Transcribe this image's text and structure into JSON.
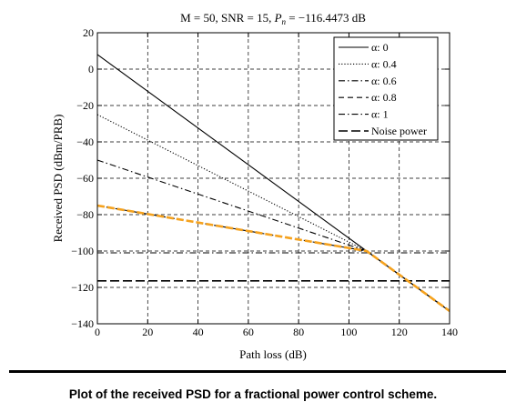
{
  "caption": "Plot of the received PSD for a fractional power control scheme.",
  "chart_data": {
    "type": "line",
    "title_parts": [
      "M = 50, SNR = 15, ",
      "P",
      "n",
      " = −116.4473 dB"
    ],
    "xlabel": "Path loss (dB)",
    "ylabel": "Received PSD (dBm/PRB)",
    "xlim": [
      0,
      140
    ],
    "ylim": [
      -140,
      20
    ],
    "x_ticks": [
      0,
      20,
      40,
      60,
      80,
      100,
      120,
      140
    ],
    "y_ticks": [
      20,
      0,
      -20,
      -40,
      -60,
      -80,
      -100,
      -120,
      -140
    ],
    "x_tick_labels": [
      "0",
      "20",
      "40",
      "60",
      "80",
      "100",
      "120",
      "140"
    ],
    "y_tick_labels": [
      "20",
      "0",
      "−20",
      "−40",
      "−60",
      "−80",
      "−100",
      "−120",
      "−140"
    ],
    "grid": true,
    "legend_position": "top-right",
    "series": [
      {
        "name": "α: 0",
        "style": "solid",
        "color": "#000000",
        "points": [
          [
            0,
            8
          ],
          [
            107,
            -100
          ],
          [
            140,
            -133
          ]
        ]
      },
      {
        "name": "α: 0.4",
        "style": "dotted",
        "color": "#000000",
        "points": [
          [
            0,
            -25
          ],
          [
            107,
            -100
          ],
          [
            140,
            -133
          ]
        ]
      },
      {
        "name": "α: 0.6",
        "style": "dashdot",
        "color": "#000000",
        "points": [
          [
            0,
            -50
          ],
          [
            107,
            -100
          ],
          [
            140,
            -133
          ]
        ]
      },
      {
        "name": "α: 0.8",
        "style": "dashed",
        "color": "#000000",
        "points": [
          [
            0,
            -75
          ],
          [
            107,
            -100
          ],
          [
            140,
            -133
          ]
        ]
      },
      {
        "name": "α: 1",
        "style": "dashdot",
        "color": "#000000",
        "points": [
          [
            0,
            -101
          ],
          [
            140,
            -101
          ]
        ]
      },
      {
        "name": "Noise power",
        "style": "longdash",
        "color": "#000000",
        "points": [
          [
            0,
            -116.4
          ],
          [
            140,
            -116.4
          ]
        ]
      }
    ],
    "highlight": {
      "style": "dashed",
      "color": "#f5a21e",
      "points": [
        [
          0,
          -75
        ],
        [
          107,
          -100
        ],
        [
          140,
          -133
        ]
      ]
    }
  }
}
